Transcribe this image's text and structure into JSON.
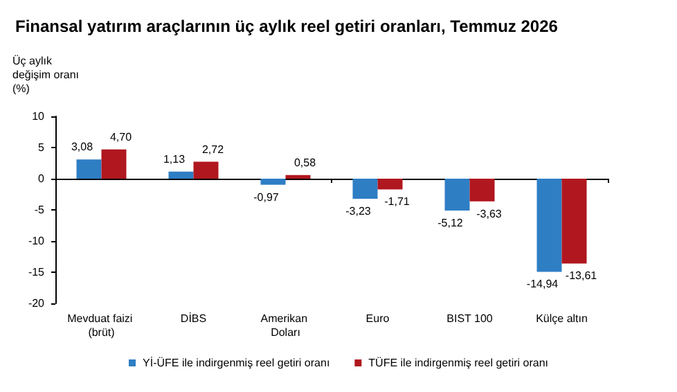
{
  "chart_data": {
    "type": "bar",
    "title": "Finansal yatırım araçlarının üç aylık reel getiri oranları, Temmuz 2026",
    "ylabel": "Üç aylık değişim oranı (%)",
    "categories": [
      "Mevduat faizi (brüt)",
      "DİBS",
      "Amerikan Doları",
      "Euro",
      "BIST 100",
      "Külçe altın"
    ],
    "series": [
      {
        "name": "Yİ-ÜFE ile indirgenmiş reel getiri oranı",
        "color": "#2e7ec4",
        "values": [
          3.08,
          1.13,
          -0.97,
          -3.23,
          -5.12,
          -14.94
        ],
        "value_labels": [
          "3,08",
          "1,13",
          "-0,97",
          "-3,23",
          "-5,12",
          "-14,94"
        ]
      },
      {
        "name": "TÜFE ile indirgenmiş reel getiri oranı",
        "color": "#b0171f",
        "values": [
          4.7,
          2.72,
          0.58,
          -1.71,
          -3.63,
          -13.61
        ],
        "value_labels": [
          "4,70",
          "2,72",
          "0,58",
          "-1,71",
          "-3,63",
          "-13,61"
        ]
      }
    ],
    "ylim": [
      -20,
      10
    ],
    "yticks": [
      -20,
      -15,
      -10,
      -5,
      0,
      5,
      10
    ],
    "legend": "bottom"
  }
}
